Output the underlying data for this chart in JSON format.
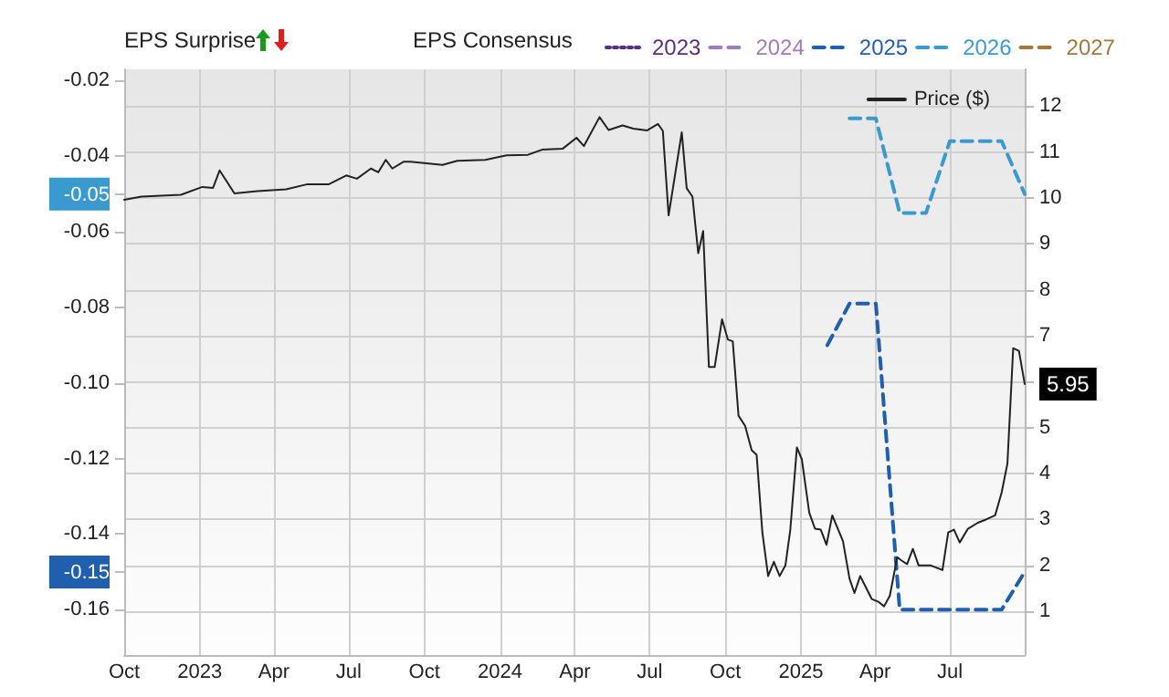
{
  "chart_data": {
    "type": "line",
    "legend_title": "EPS Consensus",
    "legend": "top",
    "grid": true,
    "annotations": [
      "EPS Surprise"
    ],
    "xlim": [
      "2022-10-01",
      "2025-09-30"
    ],
    "xticks": [
      {
        "value": "2022-10-01",
        "label": "Oct"
      },
      {
        "value": "2023-01-01",
        "label": "2023"
      },
      {
        "value": "2023-04-01",
        "label": "Apr"
      },
      {
        "value": "2023-07-01",
        "label": "Jul"
      },
      {
        "value": "2023-10-01",
        "label": "Oct"
      },
      {
        "value": "2024-01-01",
        "label": "2024"
      },
      {
        "value": "2024-04-01",
        "label": "Apr"
      },
      {
        "value": "2024-07-01",
        "label": "Jul"
      },
      {
        "value": "2024-10-01",
        "label": "Oct"
      },
      {
        "value": "2025-01-01",
        "label": "2025"
      },
      {
        "value": "2025-04-01",
        "label": "Apr"
      },
      {
        "value": "2025-07-01",
        "label": "Jul"
      }
    ],
    "ylim": [
      -0.172,
      -0.017
    ],
    "yticks": [
      -0.02,
      -0.04,
      -0.05,
      -0.06,
      -0.08,
      {
        "value": -0.1,
        "label": "-0.10"
      },
      -0.12,
      -0.14,
      -0.15,
      -0.16
    ],
    "y2lim": [
      0.05,
      12.8
    ],
    "y2ticks": [
      1,
      2,
      3,
      4,
      5,
      {
        "value": 6,
        "label": null
      },
      7,
      8,
      9,
      10,
      11,
      12
    ],
    "series": [
      {
        "name": "2023",
        "color": "#5b2c83",
        "line_style": "dotted"
      },
      {
        "name": "2024",
        "color": "#a27bbd",
        "line_style": "dashed"
      },
      {
        "name": "2025",
        "color": "#1f5fad",
        "line_style": "dashed",
        "x": [
          "2025-02-02",
          "2025-03-01",
          "2025-04-02",
          "2025-05-01",
          "2025-09-02",
          "2025-09-30"
        ],
        "values": [
          -0.09,
          -0.079,
          -0.079,
          -0.16,
          -0.16,
          -0.15
        ]
      },
      {
        "name": "2026",
        "color": "#3a9ad0",
        "line_style": "dashed",
        "x": [
          "2025-03-01",
          "2025-04-02",
          "2025-05-01",
          "2025-06-02",
          "2025-07-01",
          "2025-09-02",
          "2025-09-30"
        ],
        "values": [
          -0.03,
          -0.03,
          -0.055,
          -0.055,
          -0.036,
          -0.036,
          -0.05
        ]
      },
      {
        "name": "2027",
        "color": "#a0793a",
        "line_style": "dashed"
      },
      {
        "name": "Price ($)",
        "color": "#222222",
        "line_style": "solid",
        "axis": "y2",
        "x": [
          "2022-10-01",
          "2022-10-22",
          "2022-12-09",
          "2023-01-04",
          "2023-01-17",
          "2023-01-25",
          "2023-02-12",
          "2023-03-12",
          "2023-04-16",
          "2023-05-12",
          "2023-06-07",
          "2023-06-28",
          "2023-07-11",
          "2023-07-28",
          "2023-08-06",
          "2023-08-15",
          "2023-08-23",
          "2023-09-06",
          "2023-09-14",
          "2023-10-23",
          "2023-11-10",
          "2023-12-14",
          "2024-01-09",
          "2024-02-04",
          "2024-02-21",
          "2024-03-17",
          "2024-04-03",
          "2024-04-12",
          "2024-05-01",
          "2024-05-12",
          "2024-05-29",
          "2024-06-11",
          "2024-06-28",
          "2024-07-11",
          "2024-07-17",
          "2024-07-24",
          "2024-08-09",
          "2024-08-15",
          "2024-08-22",
          "2024-08-29",
          "2024-09-04",
          "2024-09-11",
          "2024-09-18",
          "2024-09-27",
          "2024-10-04",
          "2024-10-10",
          "2024-10-17",
          "2024-10-25",
          "2024-11-02",
          "2024-11-08",
          "2024-11-15",
          "2024-11-22",
          "2024-11-29",
          "2024-12-06",
          "2024-12-13",
          "2024-12-19",
          "2024-12-27",
          "2025-01-02",
          "2025-01-11",
          "2025-01-18",
          "2025-01-25",
          "2025-02-01",
          "2025-02-08",
          "2025-02-21",
          "2025-03-01",
          "2025-03-07",
          "2025-03-14",
          "2025-03-21",
          "2025-03-28",
          "2025-04-05",
          "2025-04-12",
          "2025-04-19",
          "2025-04-28",
          "2025-05-03",
          "2025-05-10",
          "2025-05-17",
          "2025-05-24",
          "2025-06-08",
          "2025-06-22",
          "2025-06-29",
          "2025-07-06",
          "2025-07-13",
          "2025-07-23",
          "2025-08-04",
          "2025-08-14",
          "2025-08-25",
          "2025-09-02",
          "2025-09-09",
          "2025-09-16",
          "2025-09-23",
          "2025-09-30"
        ],
        "values": [
          9.96,
          10.03,
          10.07,
          10.24,
          10.22,
          10.6,
          10.1,
          10.15,
          10.19,
          10.3,
          10.3,
          10.49,
          10.42,
          10.64,
          10.56,
          10.83,
          10.64,
          10.79,
          10.79,
          10.72,
          10.81,
          10.83,
          10.93,
          10.94,
          11.05,
          11.07,
          11.31,
          11.13,
          11.76,
          11.48,
          11.58,
          11.51,
          11.47,
          11.61,
          11.46,
          9.62,
          11.43,
          10.21,
          10.03,
          8.8,
          9.28,
          6.32,
          6.32,
          7.36,
          6.92,
          6.88,
          5.26,
          5.04,
          4.51,
          4.41,
          2.72,
          1.77,
          2.08,
          1.77,
          2.0,
          2.78,
          4.57,
          4.31,
          3.15,
          2.8,
          2.78,
          2.45,
          3.09,
          2.53,
          1.71,
          1.4,
          1.77,
          1.52,
          1.27,
          1.21,
          1.11,
          1.34,
          2.18,
          2.11,
          2.03,
          2.36,
          2.0,
          2.0,
          1.9,
          2.72,
          2.78,
          2.5,
          2.8,
          2.93,
          3.0,
          3.09,
          3.59,
          4.22,
          6.73,
          6.67,
          5.95
        ],
        "value_labels": [
          null,
          null,
          null,
          null,
          null,
          null,
          null,
          null,
          null,
          null,
          null,
          null,
          null,
          null,
          null,
          null,
          null,
          null,
          null,
          null,
          null,
          null,
          null,
          null,
          null,
          null,
          null,
          null,
          null,
          null,
          null,
          null,
          null,
          null,
          null,
          null,
          null,
          null,
          null,
          null,
          null,
          null,
          null,
          null,
          null,
          null,
          null,
          null,
          null,
          null,
          null,
          null,
          null,
          null,
          null,
          null,
          null,
          null,
          null,
          null,
          null,
          null,
          null,
          null,
          null,
          null,
          null,
          null,
          null,
          null,
          null,
          null,
          null,
          null,
          null,
          null,
          null,
          null,
          null,
          null,
          null,
          null,
          null,
          null,
          null,
          null,
          null,
          null,
          null,
          null,
          "5.95"
        ]
      }
    ]
  }
}
